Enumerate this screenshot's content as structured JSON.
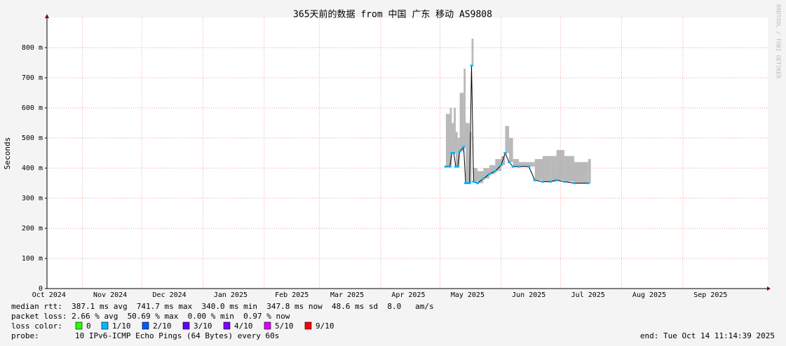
{
  "chart_data": {
    "type": "line",
    "title": "365天前的数据 from 中国 广东 移动 AS9808",
    "y_label": "Seconds",
    "watermark": "RRDTOOL / TOBI OETIKER",
    "xlim": [
      "2024-10-14",
      "2025-10-14"
    ],
    "xticks": [
      {
        "value": "2024-10-15",
        "label": "Oct 2024"
      },
      {
        "value": "2024-11-15",
        "label": "Nov 2024"
      },
      {
        "value": "2024-12-15",
        "label": "Dec 2024"
      },
      {
        "value": "2025-01-15",
        "label": "Jan 2025"
      },
      {
        "value": "2025-02-15",
        "label": "Feb 2025"
      },
      {
        "value": "2025-03-15",
        "label": "Mar 2025"
      },
      {
        "value": "2025-04-15",
        "label": "Apr 2025"
      },
      {
        "value": "2025-05-15",
        "label": "May 2025"
      },
      {
        "value": "2025-06-15",
        "label": "Jun 2025"
      },
      {
        "value": "2025-07-15",
        "label": "Jul 2025"
      },
      {
        "value": "2025-08-15",
        "label": "Aug 2025"
      },
      {
        "value": "2025-09-15",
        "label": "Sep 2025"
      }
    ],
    "ylim": [
      0,
      0.9
    ],
    "yticks": [
      0,
      {
        "value": 0.1,
        "label": "100 m"
      },
      {
        "value": 0.2,
        "label": "200 m"
      },
      {
        "value": 0.3,
        "label": "300 m"
      },
      {
        "value": 0.4,
        "label": "400 m"
      },
      {
        "value": 0.5,
        "label": "500 m"
      },
      {
        "value": 0.6,
        "label": "600 m"
      },
      {
        "value": 0.7,
        "label": "700 m"
      },
      {
        "value": 0.8,
        "label": "800 m"
      }
    ],
    "grid": true,
    "x": [
      "2025-05-04",
      "2025-05-06",
      "2025-05-07",
      "2025-05-08",
      "2025-05-09",
      "2025-05-10",
      "2025-05-11",
      "2025-05-13",
      "2025-05-14",
      "2025-05-16",
      "2025-05-17",
      "2025-05-18",
      "2025-05-20",
      "2025-05-23",
      "2025-05-26",
      "2025-05-29",
      "2025-06-01",
      "2025-06-03",
      "2025-06-05",
      "2025-06-07",
      "2025-06-10",
      "2025-06-15",
      "2025-06-18",
      "2025-06-22",
      "2025-06-26",
      "2025-06-29",
      "2025-07-03",
      "2025-07-08",
      "2025-07-15"
    ],
    "series": [
      {
        "color": "#00b8ff",
        "smoke_color": "#a8a8a8",
        "values": [
          0.405,
          0.405,
          0.45,
          0.45,
          0.405,
          0.405,
          0.455,
          0.47,
          0.35,
          0.35,
          0.74,
          0.355,
          0.35,
          0.365,
          0.38,
          0.39,
          0.41,
          0.45,
          0.42,
          0.405,
          0.405,
          0.405,
          0.36,
          0.355,
          0.355,
          0.36,
          0.355,
          0.35,
          0.35
        ],
        "upper": [
          0.58,
          0.6,
          0.55,
          0.6,
          0.52,
          0.5,
          0.65,
          0.73,
          0.55,
          0.52,
          0.83,
          0.4,
          0.39,
          0.4,
          0.41,
          0.43,
          0.44,
          0.54,
          0.5,
          0.43,
          0.42,
          0.42,
          0.43,
          0.44,
          0.44,
          0.46,
          0.44,
          0.42,
          0.43
        ]
      }
    ],
    "stats": [
      "median rtt:  387.1 ms avg  741.7 ms max  340.0 ms min  347.8 ms now  48.6 ms sd  8.0   am/s",
      "packet loss: 2.66 % avg  50.69 % max  0.00 % min  0.97 % now"
    ],
    "loss_label": "loss color:",
    "loss_legend": [
      {
        "label": "0",
        "color": "#26ff00"
      },
      {
        "label": "1/10",
        "color": "#00b8ff"
      },
      {
        "label": "2/10",
        "color": "#0059ff"
      },
      {
        "label": "3/10",
        "color": "#5e00ff"
      },
      {
        "label": "4/10",
        "color": "#7e00ff"
      },
      {
        "label": "5/10",
        "color": "#dd00ff"
      },
      {
        "label": "9/10",
        "color": "#ff0000"
      }
    ],
    "probe_label": "probe:",
    "probe": "10 IPv6-ICMP Echo Pings (64 Bytes) every 60s",
    "end": "end: Tue Oct 14 11:14:39 2025"
  }
}
